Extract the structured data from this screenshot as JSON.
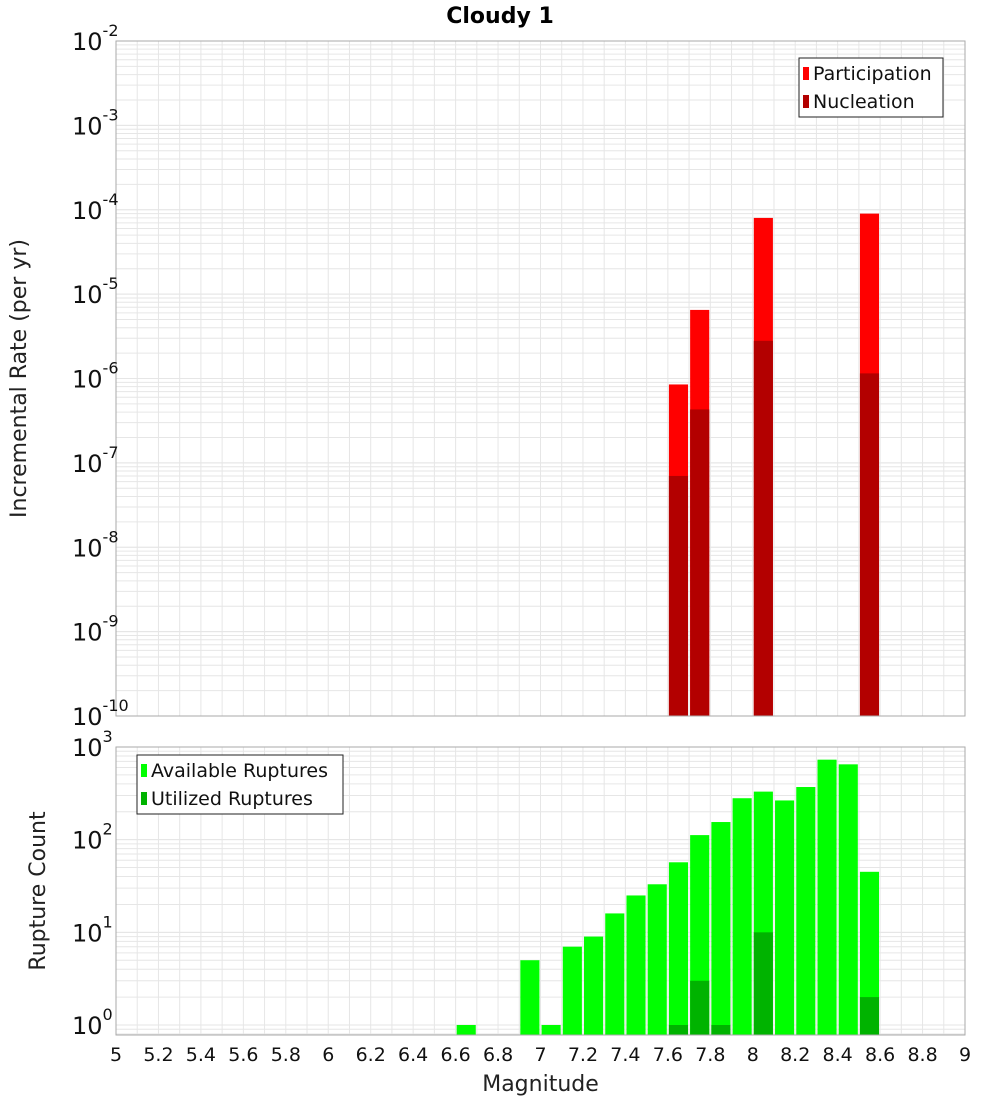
{
  "title": "Cloudy 1",
  "colors": {
    "participation": "#ff0000",
    "nucleation": "#b30000",
    "available": "#00ff00",
    "utilized": "#00b300",
    "grid": "#e6e6e6",
    "frame": "#aaaaaa"
  },
  "chart_data": [
    {
      "type": "bar",
      "title": "Cloudy 1",
      "xlabel": "Magnitude",
      "ylabel": "Incremental Rate (per yr)",
      "yscale": "log",
      "ylim": [
        1e-10,
        0.01
      ],
      "xlim": [
        5,
        9
      ],
      "bar_width": 0.09,
      "legend": {
        "position": "top-right",
        "entries": [
          "Participation",
          "Nucleation"
        ]
      },
      "series": [
        {
          "name": "Participation",
          "x": [
            7.65,
            7.75,
            8.05,
            8.55
          ],
          "values": [
            8.5e-07,
            6.5e-06,
            8e-05,
            9e-05
          ]
        },
        {
          "name": "Nucleation",
          "x": [
            7.65,
            7.75,
            8.05,
            8.55
          ],
          "values": [
            7e-08,
            4.3e-07,
            2.8e-06,
            1.15e-06
          ]
        }
      ]
    },
    {
      "type": "bar",
      "xlabel": "Magnitude",
      "ylabel": "Rupture Count",
      "yscale": "log",
      "ylim": [
        0.78,
        1000
      ],
      "xlim": [
        5,
        9
      ],
      "bar_width": 0.09,
      "legend": {
        "position": "top-left",
        "entries": [
          "Available Ruptures",
          "Utilized Ruptures"
        ]
      },
      "series": [
        {
          "name": "Available Ruptures",
          "x": [
            6.65,
            6.95,
            7.05,
            7.15,
            7.25,
            7.35,
            7.45,
            7.55,
            7.65,
            7.75,
            7.85,
            7.95,
            8.05,
            8.15,
            8.25,
            8.35,
            8.45,
            8.55
          ],
          "values": [
            1,
            5,
            1,
            7,
            9,
            16,
            25,
            33,
            57,
            112,
            155,
            280,
            330,
            265,
            370,
            730,
            650,
            45
          ]
        },
        {
          "name": "Utilized Ruptures",
          "x": [
            7.65,
            7.75,
            7.85,
            8.05,
            8.55
          ],
          "values": [
            1,
            3,
            1,
            10,
            2
          ]
        }
      ],
      "x_ticks": [
        "5",
        "5.2",
        "5.4",
        "5.6",
        "5.8",
        "6",
        "6.2",
        "6.4",
        "6.6",
        "6.8",
        "7",
        "7.2",
        "7.4",
        "7.6",
        "7.8",
        "8",
        "8.2",
        "8.4",
        "8.6",
        "8.8",
        "9"
      ]
    }
  ]
}
